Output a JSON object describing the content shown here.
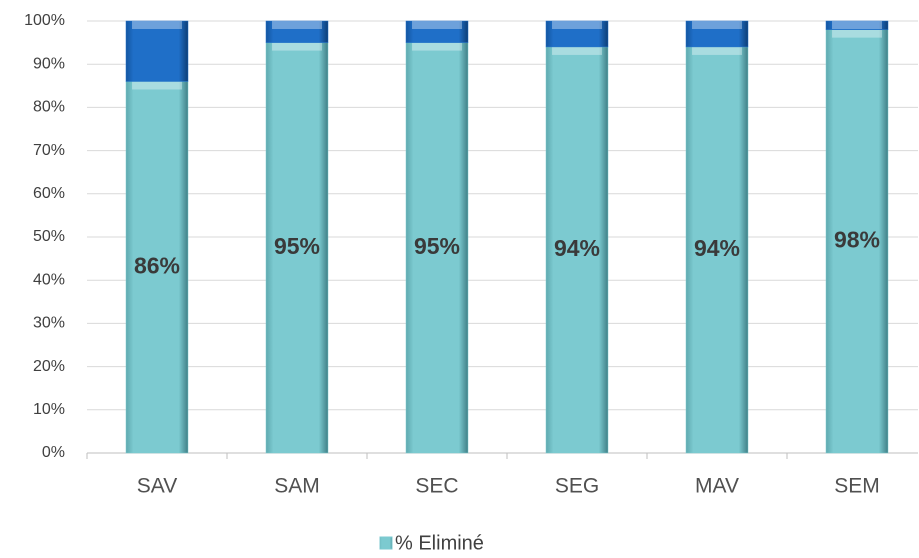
{
  "chart_data": {
    "type": "stacked_bar",
    "categories": [
      "SAV",
      "SAM",
      "SEC",
      "SEG",
      "MAV",
      "SEM"
    ],
    "series": [
      {
        "name": "% Eliminé",
        "color": "#7ccad0",
        "values": [
          86,
          95,
          95,
          94,
          94,
          98
        ],
        "value_labels": [
          "86%",
          "95%",
          "95%",
          "94%",
          "94%",
          "98%"
        ]
      },
      {
        "color": "#1f6fc8",
        "values": [
          14,
          5,
          5,
          6,
          6,
          2
        ]
      }
    ],
    "ylim": [
      0,
      100
    ],
    "yticks": [
      {
        "value": 0,
        "label": "0%"
      },
      {
        "value": 10,
        "label": "10%"
      },
      {
        "value": 20,
        "label": "20%"
      },
      {
        "value": 30,
        "label": "30%"
      },
      {
        "value": 40,
        "label": "40%"
      },
      {
        "value": 50,
        "label": "50%"
      },
      {
        "value": 60,
        "label": "60%"
      },
      {
        "value": 70,
        "label": "70%"
      },
      {
        "value": 80,
        "label": "80%"
      },
      {
        "value": 90,
        "label": "90%"
      },
      {
        "value": 100,
        "label": "100%"
      }
    ],
    "grid": true,
    "legend": "bottom"
  }
}
